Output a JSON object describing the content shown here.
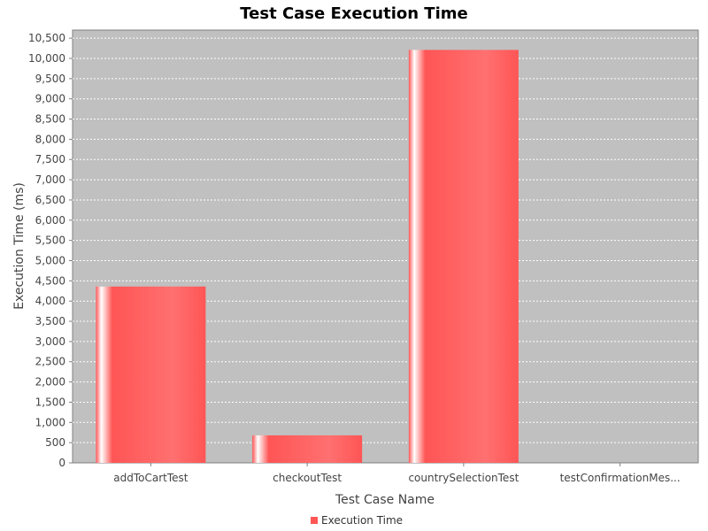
{
  "chart_data": {
    "type": "bar",
    "title": "Test Case Execution Time",
    "xlabel": "Test Case Name",
    "ylabel": "Execution Time (ms)",
    "categories": [
      "addToCartTest",
      "checkoutTest",
      "countrySelectionTest",
      "testConfirmationMes..."
    ],
    "series": [
      {
        "name": "Execution Time",
        "values": [
          4360,
          680,
          10210,
          0
        ],
        "color": "#ff5555"
      }
    ],
    "ylim": [
      0,
      10700
    ],
    "yticks": [
      0,
      500,
      1000,
      1500,
      2000,
      2500,
      3000,
      3500,
      4000,
      4500,
      5000,
      5500,
      6000,
      6500,
      7000,
      7500,
      8000,
      8500,
      9000,
      9500,
      10000,
      10500
    ],
    "grid": true,
    "legend_position": "bottom-center",
    "plot_background": "#c0c0c0"
  }
}
